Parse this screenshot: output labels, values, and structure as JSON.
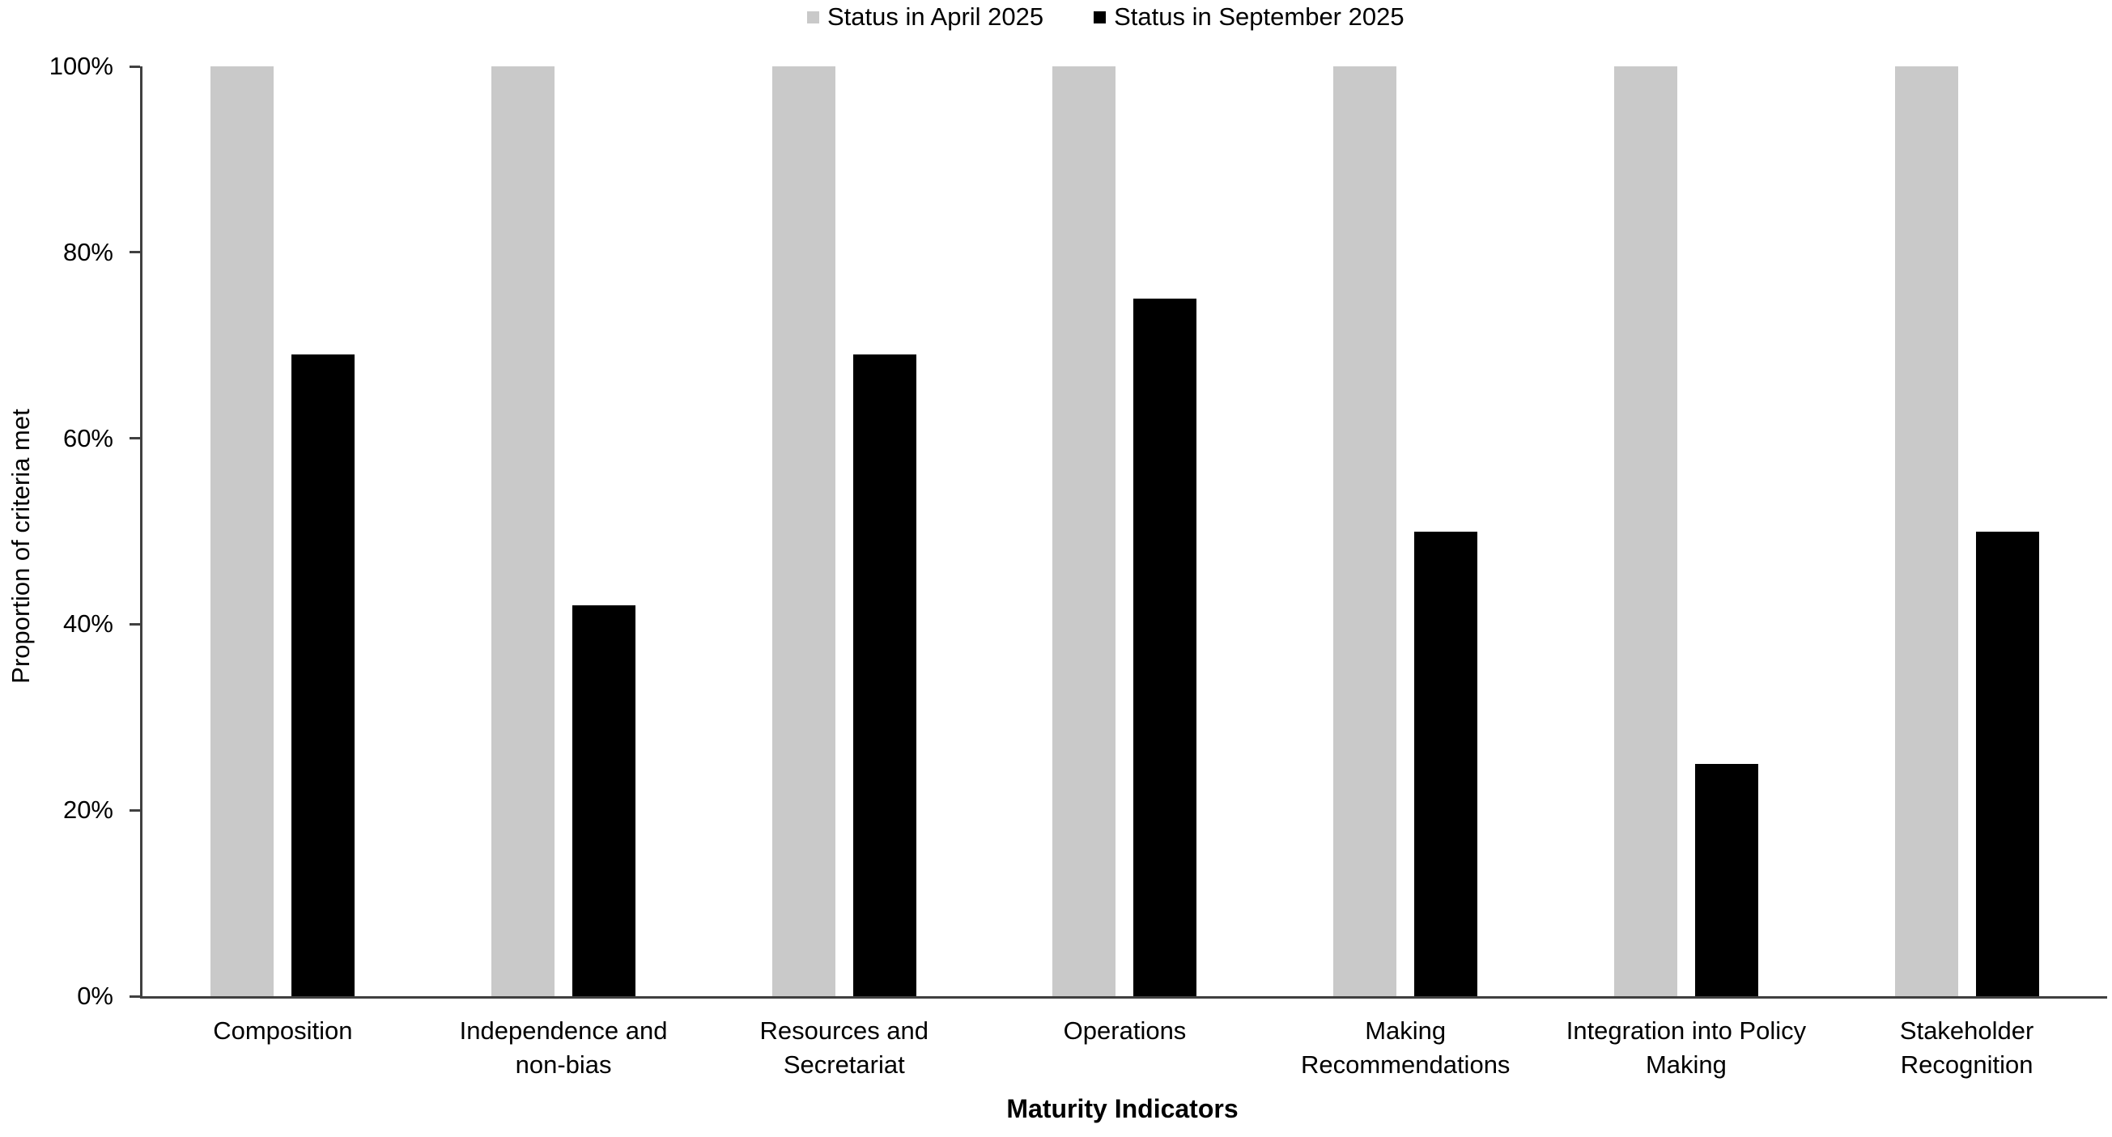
{
  "chart_data": {
    "type": "bar",
    "categories": [
      "Composition",
      "Independence and non-bias",
      "Resources and Secretariat",
      "Operations",
      "Making Recommendations",
      "Integration into Policy Making",
      "Stakeholder Recognition"
    ],
    "series": [
      {
        "name": "Status in April 2025",
        "color": "#c9c9c9",
        "values": [
          100,
          100,
          100,
          100,
          100,
          100,
          100
        ]
      },
      {
        "name": "Status in September 2025",
        "color": "#000000",
        "values": [
          69,
          42,
          69,
          75,
          50,
          25,
          50
        ]
      }
    ],
    "xlabel": "Maturity Indicators",
    "ylabel": "Proportion of criteria met",
    "ylim": [
      0,
      100
    ],
    "ytick_values": [
      0,
      20,
      40,
      60,
      80,
      100
    ],
    "ytick_labels": [
      "0%",
      "20%",
      "40%",
      "60%",
      "80%",
      "100%"
    ],
    "grid": false,
    "legend_position": "top-center",
    "axis_color": "#404040",
    "text_color": "#000000",
    "background_color": "#ffffff"
  }
}
